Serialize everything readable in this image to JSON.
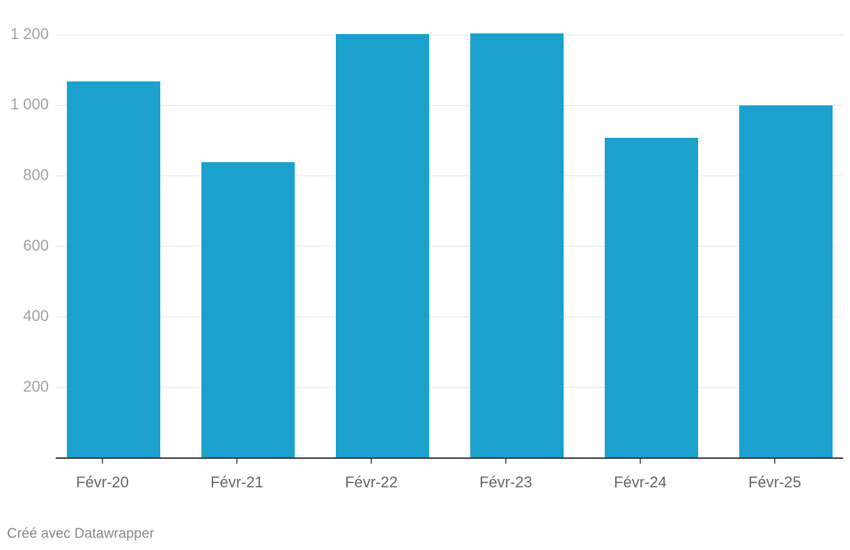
{
  "chart_data": {
    "type": "bar",
    "categories": [
      "Févr-20",
      "Févr-21",
      "Févr-22",
      "Févr-23",
      "Févr-24",
      "Févr-25"
    ],
    "values": [
      1068,
      839,
      1202,
      1204,
      908,
      1000
    ],
    "color": "#1aa1cd",
    "ylim": [
      0,
      1200
    ],
    "yticks": [
      200,
      400,
      600,
      800,
      {
        "value": 1000,
        "label": "1 000"
      },
      {
        "value": 1200,
        "label": "1 200"
      }
    ],
    "grid": true,
    "footer": "Créé avec Datawrapper"
  }
}
